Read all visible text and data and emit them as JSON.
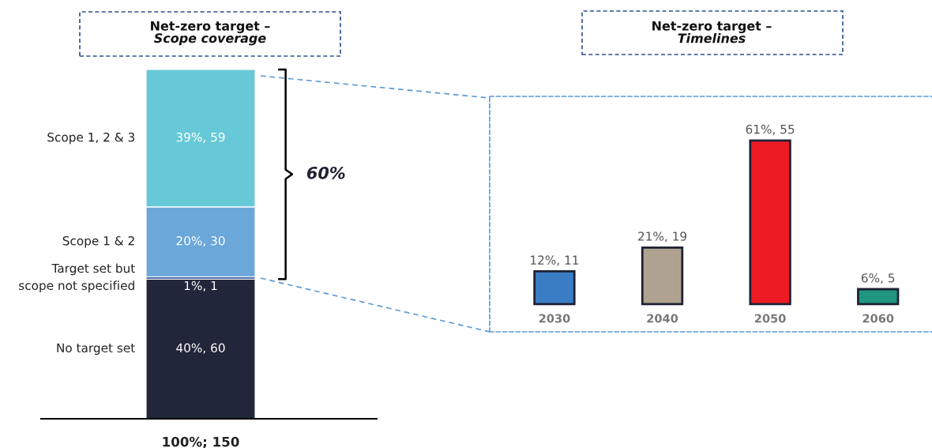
{
  "chart_data": [
    {
      "type": "bar",
      "stacked": true,
      "title": "Net-zero target –",
      "subtitle": "Scope coverage",
      "categories": [
        null
      ],
      "totals": [
        "100%; 150"
      ],
      "annotations": [
        "60%"
      ],
      "series": [
        {
          "name": "No target set",
          "color": "#22263a",
          "values": [
            60
          ],
          "value_labels": [
            "40%, 60"
          ]
        },
        {
          "name": "Target set but\nscope not specified",
          "color": "#3a5a9e",
          "values": [
            1
          ],
          "value_labels": [
            "1%, 1"
          ]
        },
        {
          "name": "Scope 1 & 2",
          "color": "#6ba7d9",
          "values": [
            30
          ],
          "value_labels": [
            "20%, 30"
          ]
        },
        {
          "name": "Scope 1, 2 & 3",
          "color": "#67c9d7",
          "values": [
            59
          ],
          "value_labels": [
            "39%, 59"
          ]
        }
      ]
    },
    {
      "type": "bar",
      "title": "Net-zero target –",
      "subtitle": "Timelines",
      "categories": [
        "2030",
        "2040",
        "2050",
        "2060"
      ],
      "values": [
        11,
        19,
        55,
        5
      ],
      "colors": [
        "#3b7dc4",
        "#afa290",
        "#ed1c24",
        "#20957f"
      ],
      "value_labels": [
        "12%, 11",
        "21%, 19",
        "61%, 55",
        "6%, 5"
      ]
    }
  ]
}
